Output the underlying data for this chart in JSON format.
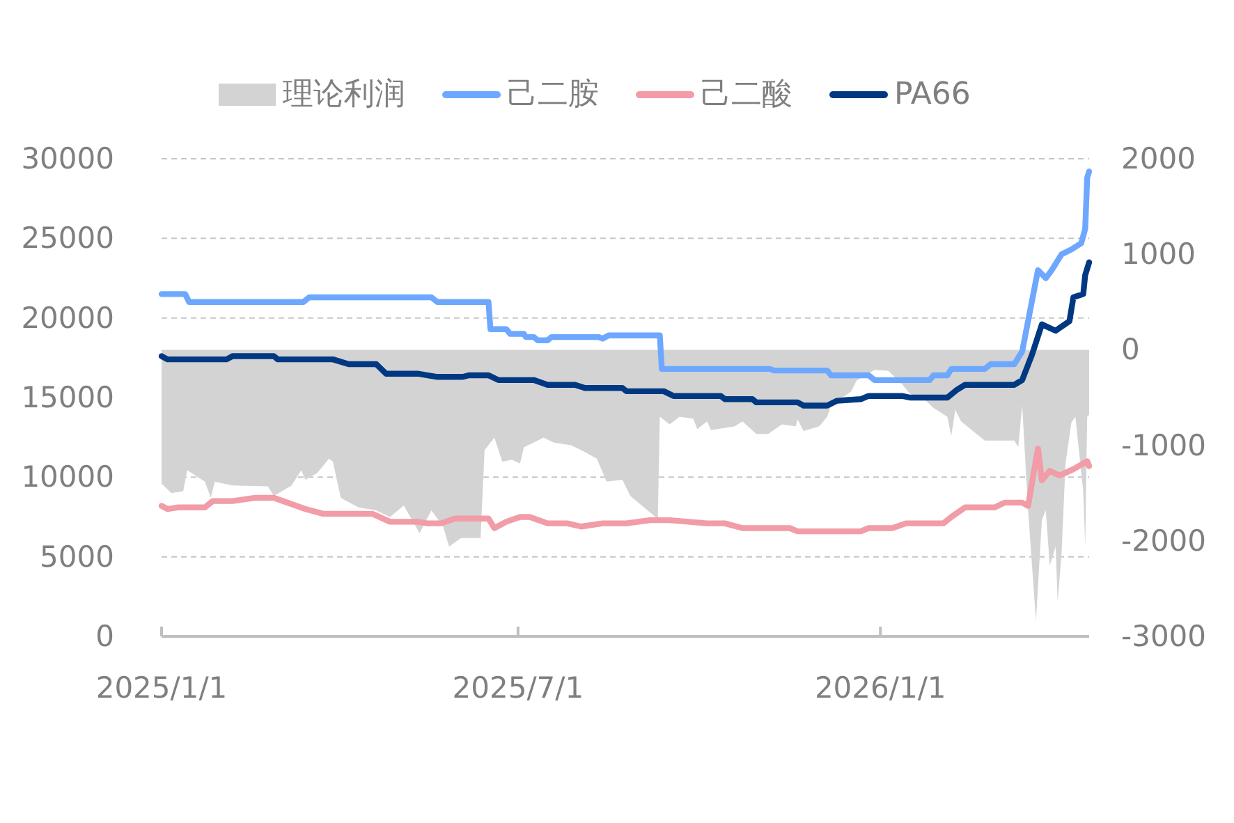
{
  "chart_data": {
    "type": "line",
    "xlim": [
      "2025-01-01",
      "2026-04-17"
    ],
    "xticks": [
      {
        "value": "2025-01-01",
        "label": "2025/1/1"
      },
      {
        "value": "2025-07-01",
        "label": "2025/7/1"
      },
      {
        "value": "2026-01-01",
        "label": "2026/1/1"
      }
    ],
    "ylim": [
      0,
      30000
    ],
    "yticks": [
      0,
      5000,
      10000,
      15000,
      20000,
      25000,
      30000
    ],
    "y2lim": [
      -3000,
      2000
    ],
    "y2ticks": [
      -3000,
      -2000,
      -1000,
      0,
      1000,
      2000
    ],
    "grid": "y",
    "legend": "top",
    "line_style": "solid",
    "series": [
      {
        "name": "理论利润",
        "type": "area",
        "axis": "y2",
        "color": "#d3d3d3",
        "x": [
          "2025-01-01",
          "2025-01-06",
          "2025-01-12",
          "2025-01-14",
          "2025-01-23",
          "2025-01-26",
          "2025-01-28",
          "2025-02-06",
          "2025-02-24",
          "2025-02-27",
          "2025-03-08",
          "2025-03-13",
          "2025-03-15",
          "2025-03-21",
          "2025-03-27",
          "2025-03-29",
          "2025-04-02",
          "2025-04-11",
          "2025-04-20",
          "2025-04-27",
          "2025-05-04",
          "2025-05-12",
          "2025-05-18",
          "2025-05-24",
          "2025-05-27",
          "2025-06-02",
          "2025-06-12",
          "2025-06-14",
          "2025-06-19",
          "2025-06-23",
          "2025-06-28",
          "2025-07-02",
          "2025-07-04",
          "2025-07-09",
          "2025-07-14",
          "2025-07-19",
          "2025-07-28",
          "2025-08-04",
          "2025-08-10",
          "2025-08-15",
          "2025-08-23",
          "2025-08-27",
          "2025-09-03",
          "2025-09-10",
          "2025-09-11",
          "2025-09-16",
          "2025-09-21",
          "2025-09-28",
          "2025-09-30",
          "2025-10-05",
          "2025-10-07",
          "2025-10-19",
          "2025-10-23",
          "2025-10-30",
          "2025-11-05",
          "2025-11-12",
          "2025-11-19",
          "2025-11-20",
          "2025-11-23",
          "2025-12-01",
          "2025-12-05",
          "2025-12-07",
          "2025-12-17",
          "2025-12-20",
          "2025-12-29",
          "2026-01-05",
          "2026-01-12",
          "2026-01-16",
          "2026-01-23",
          "2026-01-28",
          "2026-02-04",
          "2026-02-06",
          "2026-02-08",
          "2026-02-11",
          "2026-02-17",
          "2026-02-23",
          "2026-03-10",
          "2026-03-12",
          "2026-03-14",
          "2026-03-17",
          "2026-03-21",
          "2026-03-24",
          "2026-03-26",
          "2026-03-28",
          "2026-03-31",
          "2026-04-01",
          "2026-04-03",
          "2026-04-05",
          "2026-04-08",
          "2026-04-10",
          "2026-04-14",
          "2026-04-15",
          "2026-04-16",
          "2026-04-17"
        ],
        "values": [
          -1400,
          -1500,
          -1480,
          -1260,
          -1380,
          -1550,
          -1380,
          -1420,
          -1430,
          -1530,
          -1420,
          -1260,
          -1360,
          -1290,
          -1140,
          -1170,
          -1550,
          -1650,
          -1680,
          -1750,
          -1630,
          -1920,
          -1680,
          -1850,
          -2060,
          -1970,
          -1970,
          -1050,
          -920,
          -1170,
          -1150,
          -1190,
          -1020,
          -970,
          -920,
          -970,
          -1000,
          -1070,
          -1140,
          -1380,
          -1360,
          -1530,
          -1650,
          -1770,
          -700,
          -780,
          -700,
          -720,
          -830,
          -750,
          -840,
          -800,
          -750,
          -880,
          -880,
          -780,
          -800,
          -730,
          -850,
          -800,
          -700,
          -580,
          -440,
          -320,
          -210,
          -220,
          -360,
          -460,
          -510,
          -610,
          -700,
          -900,
          -630,
          -750,
          -850,
          -950,
          -950,
          -1020,
          -580,
          -1680,
          -2840,
          -1780,
          -1680,
          -2260,
          -2060,
          -2640,
          -2130,
          -1190,
          -760,
          -700,
          -1480,
          -2060,
          -700,
          -680
        ]
      },
      {
        "name": "己二胺",
        "color": "#6ea8fe",
        "x": [
          "2025-01-01",
          "2025-01-13",
          "2025-01-15",
          "2025-03-14",
          "2025-03-17",
          "2025-05-18",
          "2025-05-21",
          "2025-06-16",
          "2025-06-17",
          "2025-06-25",
          "2025-06-27",
          "2025-07-04",
          "2025-07-05",
          "2025-07-09",
          "2025-07-11",
          "2025-07-16",
          "2025-07-18",
          "2025-08-11",
          "2025-08-13",
          "2025-08-16",
          "2025-09-11",
          "2025-09-12",
          "2025-11-06",
          "2025-11-08",
          "2025-12-05",
          "2025-12-07",
          "2025-12-26",
          "2025-12-29",
          "2026-01-26",
          "2026-01-28",
          "2026-02-04",
          "2026-02-06",
          "2026-02-23",
          "2026-02-26",
          "2026-03-10",
          "2026-03-14",
          "2026-03-22",
          "2026-03-26",
          "2026-03-29",
          "2026-04-03",
          "2026-04-08",
          "2026-04-13",
          "2026-04-15",
          "2026-04-16",
          "2026-04-17"
        ],
        "values": [
          21500,
          21500,
          21000,
          21000,
          21300,
          21300,
          21000,
          21000,
          19300,
          19300,
          19000,
          19000,
          18800,
          18800,
          18600,
          18600,
          18800,
          18800,
          18700,
          18900,
          18900,
          16800,
          16800,
          16700,
          16700,
          16400,
          16400,
          16100,
          16100,
          16400,
          16400,
          16800,
          16800,
          17100,
          17100,
          17900,
          23000,
          22500,
          23000,
          24000,
          24300,
          24700,
          25600,
          28800,
          29200
        ]
      },
      {
        "name": "己二酸",
        "color": "#f19ca6",
        "x": [
          "2025-01-01",
          "2025-01-04",
          "2025-01-09",
          "2025-01-23",
          "2025-01-27",
          "2025-02-06",
          "2025-02-17",
          "2025-02-27",
          "2025-03-06",
          "2025-03-15",
          "2025-03-24",
          "2025-04-18",
          "2025-04-27",
          "2025-05-11",
          "2025-05-16",
          "2025-05-23",
          "2025-05-30",
          "2025-06-16",
          "2025-06-19",
          "2025-06-25",
          "2025-07-02",
          "2025-07-07",
          "2025-07-16",
          "2025-07-26",
          "2025-08-02",
          "2025-08-13",
          "2025-08-25",
          "2025-09-06",
          "2025-09-16",
          "2025-10-05",
          "2025-10-14",
          "2025-10-23",
          "2025-11-16",
          "2025-11-20",
          "2025-12-22",
          "2025-12-26",
          "2026-01-07",
          "2026-01-14",
          "2026-02-02",
          "2026-02-06",
          "2026-02-13",
          "2026-02-28",
          "2026-03-05",
          "2026-03-14",
          "2026-03-17",
          "2026-03-20",
          "2026-03-22",
          "2026-03-24",
          "2026-03-28",
          "2026-04-02",
          "2026-04-09",
          "2026-04-16",
          "2026-04-17"
        ],
        "values": [
          8200,
          8000,
          8100,
          8100,
          8500,
          8500,
          8700,
          8700,
          8400,
          8000,
          7700,
          7700,
          7200,
          7200,
          7100,
          7100,
          7400,
          7400,
          6800,
          7200,
          7500,
          7500,
          7100,
          7100,
          6900,
          7100,
          7100,
          7300,
          7300,
          7100,
          7100,
          6800,
          6800,
          6600,
          6600,
          6800,
          6800,
          7100,
          7100,
          7500,
          8100,
          8100,
          8400,
          8400,
          8200,
          10400,
          11800,
          9800,
          10400,
          10100,
          10500,
          11000,
          10700
        ]
      },
      {
        "name": "PA66",
        "color": "#003882",
        "x": [
          "2025-01-01",
          "2025-01-04",
          "2025-02-03",
          "2025-02-06",
          "2025-02-27",
          "2025-03-01",
          "2025-03-29",
          "2025-04-06",
          "2025-04-20",
          "2025-04-25",
          "2025-05-11",
          "2025-05-21",
          "2025-06-03",
          "2025-06-06",
          "2025-06-16",
          "2025-06-21",
          "2025-07-09",
          "2025-07-16",
          "2025-07-30",
          "2025-08-04",
          "2025-08-23",
          "2025-08-25",
          "2025-09-13",
          "2025-09-18",
          "2025-10-12",
          "2025-10-14",
          "2025-10-28",
          "2025-10-30",
          "2025-11-20",
          "2025-11-23",
          "2025-12-05",
          "2025-12-10",
          "2025-12-22",
          "2025-12-26",
          "2026-01-12",
          "2026-01-16",
          "2026-02-04",
          "2026-02-09",
          "2026-02-13",
          "2026-03-10",
          "2026-03-14",
          "2026-03-19",
          "2026-03-24",
          "2026-03-31",
          "2026-04-07",
          "2026-04-09",
          "2026-04-14",
          "2026-04-15",
          "2026-04-17"
        ],
        "values": [
          17600,
          17400,
          17400,
          17600,
          17600,
          17400,
          17400,
          17100,
          17100,
          16500,
          16500,
          16300,
          16300,
          16400,
          16400,
          16100,
          16100,
          15800,
          15800,
          15600,
          15600,
          15400,
          15400,
          15100,
          15100,
          14900,
          14900,
          14700,
          14700,
          14500,
          14500,
          14800,
          14900,
          15100,
          15100,
          15000,
          15000,
          15500,
          15800,
          15800,
          16100,
          17700,
          19600,
          19200,
          19800,
          21300,
          21500,
          22700,
          23500
        ]
      }
    ]
  }
}
